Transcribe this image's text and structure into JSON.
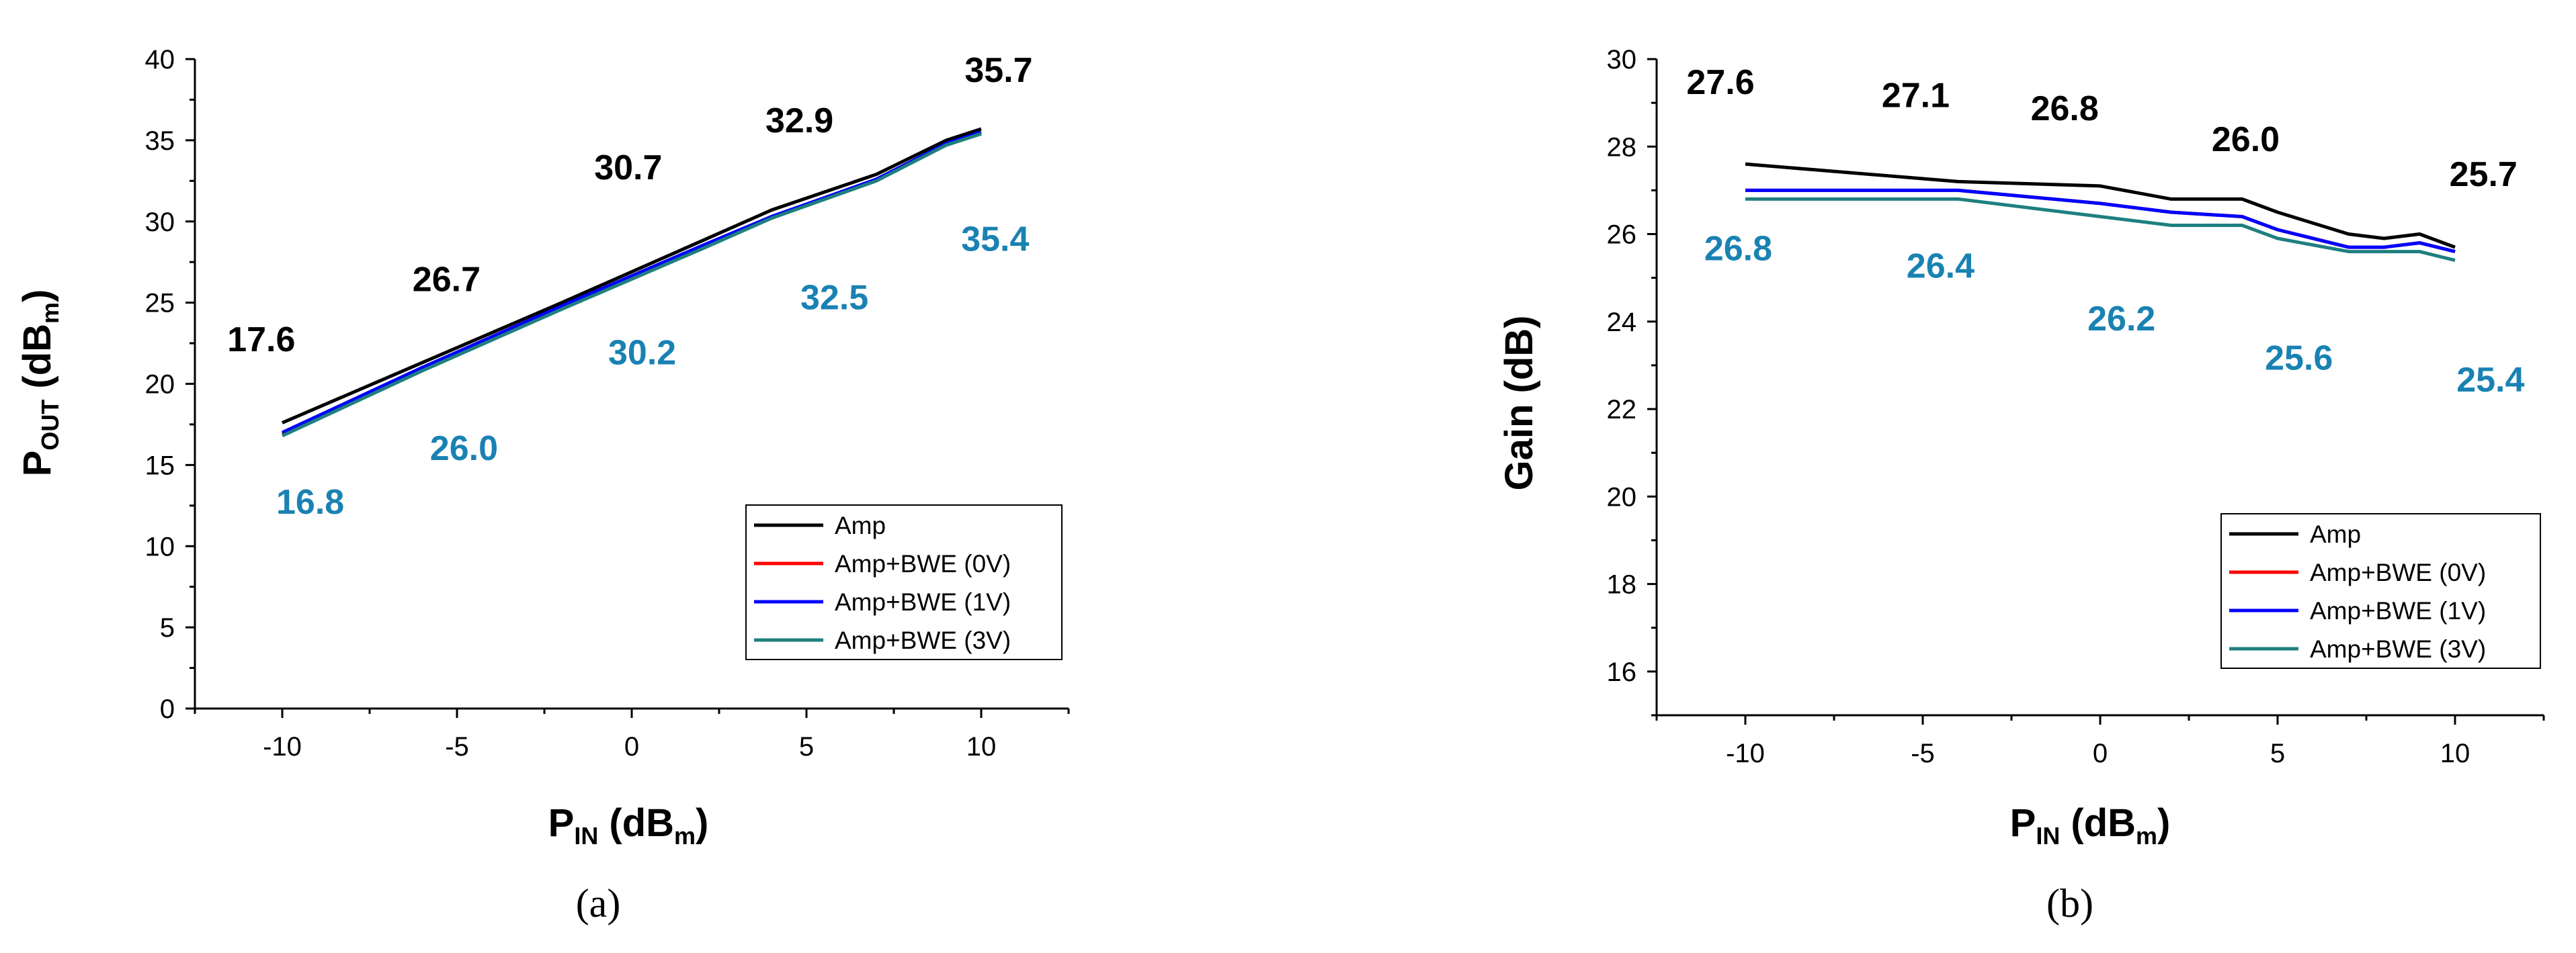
{
  "chart_data": [
    {
      "type": "line",
      "caption": "(a)",
      "xlabel": {
        "main": "P",
        "sub": "IN",
        "rest1": " (dB",
        "sub2": "m",
        "rest2": ")"
      },
      "ylabel": {
        "main": "P",
        "sub": "OUT",
        "rest1": " (dB",
        "sub2": "m",
        "rest2": ")"
      },
      "xlim": [
        -12.5,
        12.5
      ],
      "ylim": [
        0,
        40
      ],
      "xticks": [
        -10,
        -5,
        0,
        5,
        10
      ],
      "yticks": [
        0,
        5,
        10,
        15,
        20,
        25,
        30,
        35,
        40
      ],
      "xtick_labels": [
        "-10",
        "-5",
        "0",
        "5",
        "10"
      ],
      "ytick_labels": [
        "0",
        "5",
        "10",
        "15",
        "20",
        "25",
        "30",
        "35",
        "40"
      ],
      "series": [
        {
          "name": "Amp",
          "color": "#000000",
          "x": [
            -10,
            -6,
            -2,
            2,
            4,
            7,
            9,
            10
          ],
          "y": [
            17.6,
            21.3,
            25.0,
            28.8,
            30.7,
            32.9,
            35.0,
            35.7
          ]
        },
        {
          "name": "Amp+BWE (0V)",
          "color": "#ff0000",
          "x": [
            -10,
            -6,
            -2,
            2,
            4,
            7,
            9,
            10
          ],
          "y": [
            16.9,
            20.9,
            24.7,
            28.4,
            30.3,
            32.5,
            34.8,
            35.4
          ]
        },
        {
          "name": "Amp+BWE (1V)",
          "color": "#0000ff",
          "x": [
            -10,
            -6,
            -2,
            2,
            4,
            7,
            9,
            10
          ],
          "y": [
            17.0,
            21.0,
            24.8,
            28.5,
            30.3,
            32.6,
            34.8,
            35.5
          ]
        },
        {
          "name": "Amp+BWE (3V)",
          "color": "#1f7f7f",
          "x": [
            -10,
            -6,
            -2,
            2,
            4,
            7,
            9,
            10
          ],
          "y": [
            16.8,
            20.8,
            24.6,
            28.3,
            30.2,
            32.5,
            34.7,
            35.4
          ]
        }
      ],
      "legend_position": "lower-right",
      "annotations": [
        {
          "text": "17.6",
          "x": -10.6,
          "y": 22.0,
          "color": "#000000"
        },
        {
          "text": "26.7",
          "x": -5.3,
          "y": 25.7,
          "color": "#000000"
        },
        {
          "text": "30.7",
          "x": -0.1,
          "y": 32.6,
          "color": "#000000"
        },
        {
          "text": "32.9",
          "x": 4.8,
          "y": 35.5,
          "color": "#000000"
        },
        {
          "text": "35.7",
          "x": 10.5,
          "y": 38.6,
          "color": "#000000"
        },
        {
          "text": "16.8",
          "x": -9.2,
          "y": 12.0,
          "color": "#1a82b3"
        },
        {
          "text": "26.0",
          "x": -4.8,
          "y": 15.3,
          "color": "#1a82b3"
        },
        {
          "text": "30.2",
          "x": 0.3,
          "y": 21.2,
          "color": "#1a82b3"
        },
        {
          "text": "32.5",
          "x": 5.8,
          "y": 24.6,
          "color": "#1a82b3"
        },
        {
          "text": "35.4",
          "x": 10.4,
          "y": 28.2,
          "color": "#1a82b3"
        }
      ]
    },
    {
      "type": "line",
      "caption": "(b)",
      "xlabel": {
        "main": "P",
        "sub": "IN",
        "rest1": " (dB",
        "sub2": "m",
        "rest2": ")"
      },
      "ylabel": {
        "main": "Gain (dB)"
      },
      "xlim": [
        -12.5,
        12.5
      ],
      "ylim": [
        15,
        30
      ],
      "xticks": [
        -10,
        -5,
        0,
        5,
        10
      ],
      "yticks": [
        16,
        18,
        20,
        22,
        24,
        26,
        28,
        30
      ],
      "xtick_labels": [
        "-10",
        "-5",
        "0",
        "5",
        "10"
      ],
      "ytick_labels": [
        "16",
        "18",
        "20",
        "22",
        "24",
        "26",
        "28",
        "30"
      ],
      "series": [
        {
          "name": "Amp",
          "color": "#000000",
          "x": [
            -10,
            -4,
            0,
            2,
            4,
            5,
            7,
            8,
            9,
            10
          ],
          "y": [
            27.6,
            27.2,
            27.1,
            26.8,
            26.8,
            26.5,
            26.0,
            25.9,
            26.0,
            25.7
          ]
        },
        {
          "name": "Amp+BWE (0V)",
          "color": "#ff0000",
          "x": [
            -10,
            -4,
            0,
            2,
            4,
            5,
            7,
            8,
            9,
            10
          ],
          "y": [
            27.0,
            27.0,
            26.7,
            26.5,
            26.4,
            26.1,
            25.7,
            25.7,
            25.8,
            25.6
          ]
        },
        {
          "name": "Amp+BWE (1V)",
          "color": "#0000ff",
          "x": [
            -10,
            -4,
            0,
            2,
            4,
            5,
            7,
            8,
            9,
            10
          ],
          "y": [
            27.0,
            27.0,
            26.7,
            26.5,
            26.4,
            26.1,
            25.7,
            25.7,
            25.8,
            25.6
          ]
        },
        {
          "name": "Amp+BWE (3V)",
          "color": "#1f7f7f",
          "x": [
            -10,
            -4,
            0,
            2,
            4,
            5,
            7,
            8,
            9,
            10
          ],
          "y": [
            26.8,
            26.8,
            26.4,
            26.2,
            26.2,
            25.9,
            25.6,
            25.6,
            25.6,
            25.4
          ]
        }
      ],
      "legend_position": "lower-right",
      "annotations": [
        {
          "text": "27.6",
          "x": -10.7,
          "y": 29.2,
          "color": "#000000"
        },
        {
          "text": "27.1",
          "x": -5.2,
          "y": 28.9,
          "color": "#000000"
        },
        {
          "text": "26.8",
          "x": -1.0,
          "y": 28.6,
          "color": "#000000"
        },
        {
          "text": "26.0",
          "x": 4.1,
          "y": 27.9,
          "color": "#000000"
        },
        {
          "text": "25.7",
          "x": 10.8,
          "y": 27.1,
          "color": "#000000"
        },
        {
          "text": "26.8",
          "x": -10.2,
          "y": 25.4,
          "color": "#1a82b3"
        },
        {
          "text": "26.4",
          "x": -4.5,
          "y": 25.0,
          "color": "#1a82b3"
        },
        {
          "text": "26.2",
          "x": 0.6,
          "y": 23.8,
          "color": "#1a82b3"
        },
        {
          "text": "25.6",
          "x": 5.6,
          "y": 22.9,
          "color": "#1a82b3"
        },
        {
          "text": "25.4",
          "x": 11.0,
          "y": 22.4,
          "color": "#1a82b3"
        }
      ]
    }
  ]
}
